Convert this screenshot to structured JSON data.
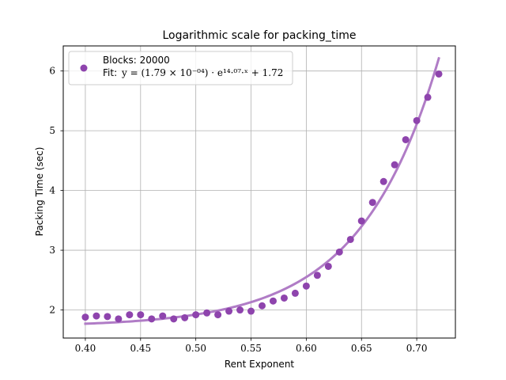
{
  "chart_data": {
    "type": "scatter",
    "title": "Logarithmic scale for packing_time",
    "xlabel": "Rent Exponent",
    "ylabel": "Packing Time (sec)",
    "xlim": [
      0.38,
      0.735
    ],
    "ylim": [
      1.53,
      6.42
    ],
    "grid": true,
    "x_ticks": [
      0.4,
      0.45,
      0.5,
      0.55,
      0.6,
      0.65,
      0.7
    ],
    "x_tick_labels": [
      "0.40",
      "0.45",
      "0.50",
      "0.55",
      "0.60",
      "0.65",
      "0.70"
    ],
    "y_ticks": [
      2,
      3,
      4,
      5,
      6
    ],
    "y_tick_labels": [
      "2",
      "3",
      "4",
      "5",
      "6"
    ],
    "legend": {
      "placement": "top-left",
      "line1": "Blocks: 20000",
      "line2_prefix": "Fit:",
      "line2_formula": "y = (1.79 × 10⁻⁰⁴) · e¹⁴·⁰⁷·ˣ + 1.72"
    },
    "series": [
      {
        "name": "Blocks: 20000",
        "kind": "scatter",
        "color": "#8e44ad",
        "x": [
          0.4,
          0.41,
          0.42,
          0.43,
          0.44,
          0.45,
          0.46,
          0.47,
          0.48,
          0.49,
          0.5,
          0.51,
          0.52,
          0.53,
          0.54,
          0.55,
          0.56,
          0.57,
          0.58,
          0.59,
          0.6,
          0.61,
          0.62,
          0.63,
          0.64,
          0.65,
          0.66,
          0.67,
          0.68,
          0.69,
          0.7,
          0.71,
          0.72
        ],
        "y": [
          1.88,
          1.9,
          1.89,
          1.85,
          1.92,
          1.92,
          1.85,
          1.9,
          1.85,
          1.87,
          1.92,
          1.95,
          1.92,
          1.98,
          2.0,
          1.98,
          2.07,
          2.15,
          2.2,
          2.28,
          2.4,
          2.58,
          2.73,
          2.97,
          3.18,
          3.49,
          3.8,
          4.15,
          4.43,
          4.85,
          5.17,
          5.56,
          5.95
        ]
      },
      {
        "name": "Fit",
        "kind": "line",
        "color": "#b07cc6",
        "a": 0.000179,
        "b": 14.07,
        "c": 1.72,
        "x_range": [
          0.4,
          0.72
        ]
      }
    ]
  }
}
